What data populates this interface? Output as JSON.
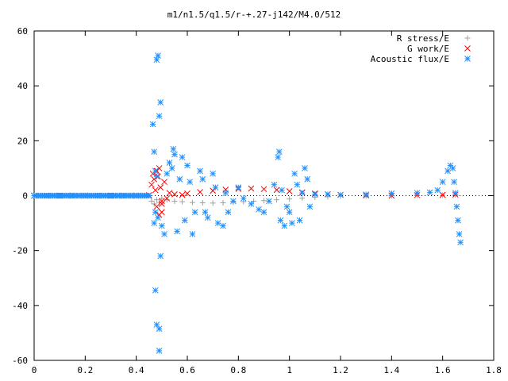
{
  "chart_data": {
    "type": "scatter",
    "title": "m1/n1.5/q1.5/r-+.27-j142/M4.0/512",
    "xlabel": "",
    "ylabel": "",
    "xlim": [
      0,
      1.8
    ],
    "ylim": [
      -60,
      60
    ],
    "xticks": [
      "0",
      "0.2",
      "0.4",
      "0.6",
      "0.8",
      "1",
      "1.2",
      "1.4",
      "1.6",
      "1.8"
    ],
    "yticks": [
      "-60",
      "-40",
      "-20",
      "0",
      "20",
      "40",
      "60"
    ],
    "grid": false,
    "legend_position": "top-right",
    "series": [
      {
        "name": "R stress/E",
        "marker": "plus",
        "color": "#a0a0a0",
        "points": [
          [
            0.46,
            -2
          ],
          [
            0.47,
            -3
          ],
          [
            0.48,
            -1.5
          ],
          [
            0.49,
            -2.5
          ],
          [
            0.5,
            -1
          ],
          [
            0.52,
            -1.5
          ],
          [
            0.55,
            -2
          ],
          [
            0.58,
            -2.2
          ],
          [
            0.62,
            -2.5
          ],
          [
            0.66,
            -2.6
          ],
          [
            0.7,
            -2.7
          ],
          [
            0.74,
            -2.6
          ],
          [
            0.78,
            -2.4
          ],
          [
            0.82,
            -2.2
          ],
          [
            0.86,
            -2.0
          ],
          [
            0.9,
            -1.8
          ],
          [
            0.95,
            -1.5
          ],
          [
            1.0,
            -1.2
          ],
          [
            1.05,
            -0.9
          ],
          [
            1.1,
            -0.6
          ],
          [
            1.15,
            -0.4
          ],
          [
            1.2,
            -0.2
          ],
          [
            1.3,
            -0.1
          ],
          [
            1.4,
            0
          ],
          [
            1.5,
            0.1
          ],
          [
            1.6,
            0.2
          ],
          [
            1.65,
            0.3
          ]
        ]
      },
      {
        "name": "G work/E",
        "marker": "cross",
        "color": "#ff0000",
        "points": [
          [
            0,
            0
          ],
          [
            0.1,
            0
          ],
          [
            0.2,
            0
          ],
          [
            0.3,
            0
          ],
          [
            0.4,
            0
          ],
          [
            0.45,
            0.2
          ],
          [
            0.46,
            4
          ],
          [
            0.465,
            8
          ],
          [
            0.47,
            6
          ],
          [
            0.475,
            2
          ],
          [
            0.48,
            9
          ],
          [
            0.485,
            7
          ],
          [
            0.49,
            10
          ],
          [
            0.495,
            3
          ],
          [
            0.5,
            -2
          ],
          [
            0.5,
            -6
          ],
          [
            0.48,
            -4
          ],
          [
            0.49,
            -7
          ],
          [
            0.5,
            -3
          ],
          [
            0.51,
            5
          ],
          [
            0.52,
            -1
          ],
          [
            0.53,
            1
          ],
          [
            0.55,
            0.5
          ],
          [
            0.58,
            0.3
          ],
          [
            0.6,
            0.8
          ],
          [
            0.65,
            1.3
          ],
          [
            0.7,
            1.8
          ],
          [
            0.75,
            2.2
          ],
          [
            0.8,
            2.5
          ],
          [
            0.85,
            2.6
          ],
          [
            0.9,
            2.4
          ],
          [
            0.95,
            2.1
          ],
          [
            1.0,
            1.6
          ],
          [
            1.05,
            1.2
          ],
          [
            1.1,
            0.8
          ],
          [
            1.15,
            0.5
          ],
          [
            1.2,
            0.3
          ],
          [
            1.3,
            0.1
          ],
          [
            1.4,
            0.0
          ],
          [
            1.5,
            0.2
          ],
          [
            1.6,
            0.3
          ],
          [
            1.65,
            0.4
          ]
        ]
      },
      {
        "name": "Acoustic flux/E",
        "marker": "star",
        "color": "#1e90ff",
        "points": [
          [
            0,
            0
          ],
          [
            0.05,
            0
          ],
          [
            0.1,
            0
          ],
          [
            0.15,
            0
          ],
          [
            0.2,
            0
          ],
          [
            0.25,
            0
          ],
          [
            0.3,
            0
          ],
          [
            0.35,
            0
          ],
          [
            0.4,
            0
          ],
          [
            0.45,
            0
          ],
          [
            0.465,
            26
          ],
          [
            0.47,
            16
          ],
          [
            0.475,
            9
          ],
          [
            0.48,
            7
          ],
          [
            0.485,
            51
          ],
          [
            0.48,
            49.5
          ],
          [
            0.495,
            34
          ],
          [
            0.49,
            29
          ],
          [
            0.475,
            -34.5
          ],
          [
            0.48,
            -47
          ],
          [
            0.49,
            -48.5
          ],
          [
            0.49,
            -56.5
          ],
          [
            0.495,
            -22
          ],
          [
            0.47,
            -10
          ],
          [
            0.475,
            -6
          ],
          [
            0.485,
            -8
          ],
          [
            0.5,
            -11
          ],
          [
            0.51,
            -14
          ],
          [
            0.52,
            8
          ],
          [
            0.53,
            12
          ],
          [
            0.54,
            10
          ],
          [
            0.545,
            17
          ],
          [
            0.55,
            15
          ],
          [
            0.56,
            -13
          ],
          [
            0.57,
            6
          ],
          [
            0.58,
            14
          ],
          [
            0.59,
            -9
          ],
          [
            0.6,
            11
          ],
          [
            0.61,
            5
          ],
          [
            0.62,
            -14
          ],
          [
            0.63,
            -6
          ],
          [
            0.65,
            9
          ],
          [
            0.66,
            6
          ],
          [
            0.67,
            -6
          ],
          [
            0.68,
            -8
          ],
          [
            0.7,
            8
          ],
          [
            0.71,
            3
          ],
          [
            0.72,
            -10
          ],
          [
            0.74,
            -11
          ],
          [
            0.75,
            1
          ],
          [
            0.76,
            -6
          ],
          [
            0.78,
            -2
          ],
          [
            0.8,
            3
          ],
          [
            0.82,
            -1
          ],
          [
            0.85,
            -3
          ],
          [
            0.88,
            -5
          ],
          [
            0.9,
            -6
          ],
          [
            0.92,
            -2
          ],
          [
            0.94,
            4
          ],
          [
            0.955,
            14
          ],
          [
            0.96,
            16
          ],
          [
            0.965,
            -9
          ],
          [
            0.97,
            2
          ],
          [
            0.98,
            -11
          ],
          [
            0.99,
            -4
          ],
          [
            1.0,
            -6
          ],
          [
            1.01,
            -10
          ],
          [
            1.02,
            8
          ],
          [
            1.03,
            4
          ],
          [
            1.04,
            -9
          ],
          [
            1.05,
            1
          ],
          [
            1.06,
            10
          ],
          [
            1.07,
            6
          ],
          [
            1.08,
            -4
          ],
          [
            1.1,
            0.5
          ],
          [
            1.15,
            0.5
          ],
          [
            1.2,
            0.3
          ],
          [
            1.3,
            0.4
          ],
          [
            1.4,
            0.8
          ],
          [
            1.5,
            1.0
          ],
          [
            1.55,
            1.2
          ],
          [
            1.58,
            2
          ],
          [
            1.6,
            5
          ],
          [
            1.62,
            9
          ],
          [
            1.63,
            11
          ],
          [
            1.64,
            10
          ],
          [
            1.645,
            5
          ],
          [
            1.65,
            1
          ],
          [
            1.655,
            -4
          ],
          [
            1.66,
            -9
          ],
          [
            1.665,
            -14
          ],
          [
            1.67,
            -17
          ]
        ]
      }
    ]
  }
}
